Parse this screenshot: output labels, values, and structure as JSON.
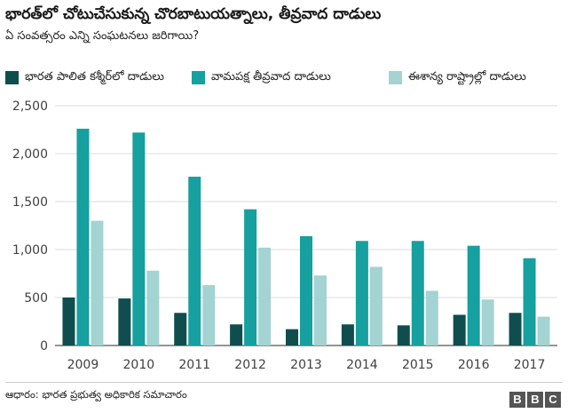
{
  "header": {
    "title": "భారత్‌లో చోటుచేసుకున్న చొరబాటుయత్నాలు, తీవ్రవాద దాడులు",
    "subtitle": "ఏ సంవత్సరం ఎన్ని సంఘటనలు జరిగాయి?"
  },
  "footer": {
    "source": "ఆధారం: భారత ప్రభుత్వ అధికారిక సమాచారం",
    "logo_letters": [
      "B",
      "B",
      "C"
    ]
  },
  "chart_data": {
    "type": "bar",
    "categories": [
      "2009",
      "2010",
      "2011",
      "2012",
      "2013",
      "2014",
      "2015",
      "2016",
      "2017"
    ],
    "series": [
      {
        "name": "భారత పాలిత కశ్మీర్‌లో దాడులు",
        "color": "#0f4d4f",
        "values": [
          500,
          490,
          340,
          220,
          170,
          220,
          210,
          320,
          340
        ]
      },
      {
        "name": "వామపక్ష తీవ్రవాద దాడులు",
        "color": "#16a09f",
        "values": [
          2260,
          2220,
          1760,
          1420,
          1140,
          1090,
          1090,
          1040,
          910
        ]
      },
      {
        "name": "ఈశాన్య రాష్ట్రాల్లో దాడులు",
        "color": "#a3d3d2",
        "values": [
          1300,
          780,
          630,
          1020,
          730,
          820,
          570,
          480,
          300
        ]
      }
    ],
    "ylim": [
      0,
      2500
    ],
    "yticks": [
      0,
      500,
      1000,
      1500,
      2000,
      2500
    ],
    "ytick_labels": [
      "0",
      "500",
      "1,000",
      "1,500",
      "2,000",
      "2,500"
    ],
    "grid": true,
    "legend": "top"
  }
}
